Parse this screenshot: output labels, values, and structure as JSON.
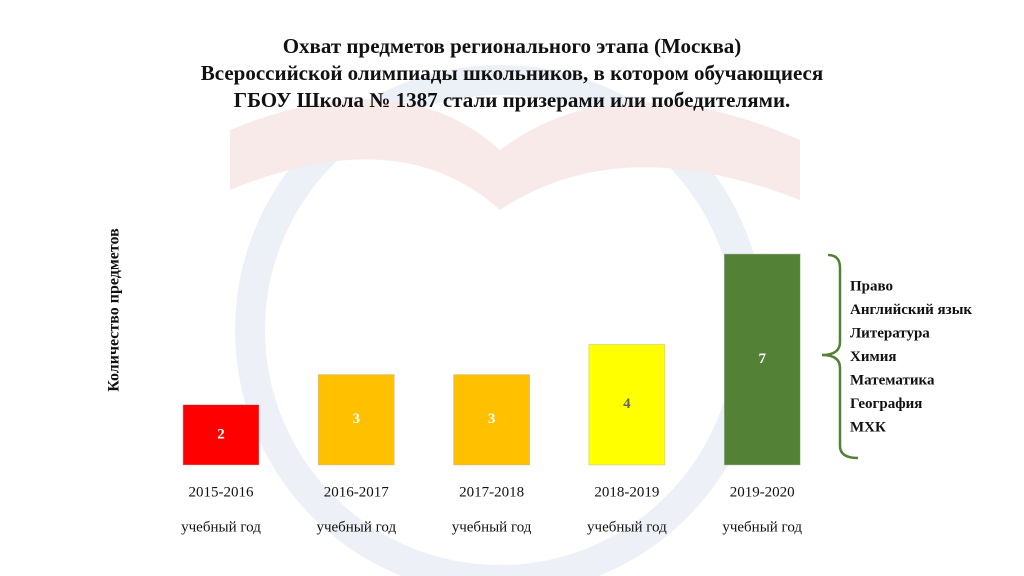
{
  "chart_data": {
    "type": "bar",
    "title_lines": [
      "Охват предметов регионального этапа (Москва)",
      "Всероссийской олимпиады школьников, в котором обучающиеся",
      "ГБОУ Школа № 1387 стали призерами или победителями."
    ],
    "y_label": "Количество предметов",
    "categories": [
      "2015-2016",
      "2016-2017",
      "2017-2018",
      "2018-2019",
      "2019-2020"
    ],
    "category_sublabels": [
      "учебный год",
      "учебный год",
      "учебный год",
      "учебный год",
      "учебный год"
    ],
    "values": [
      2,
      3,
      3,
      4,
      7
    ],
    "colors": [
      "#ff0000",
      "#ffc000",
      "#ffc000",
      "#ffff00",
      "#538135"
    ],
    "annotation_items": [
      "Право",
      "Английский язык",
      "Литература",
      "Химия",
      "Математика",
      "География",
      "МХК"
    ]
  }
}
